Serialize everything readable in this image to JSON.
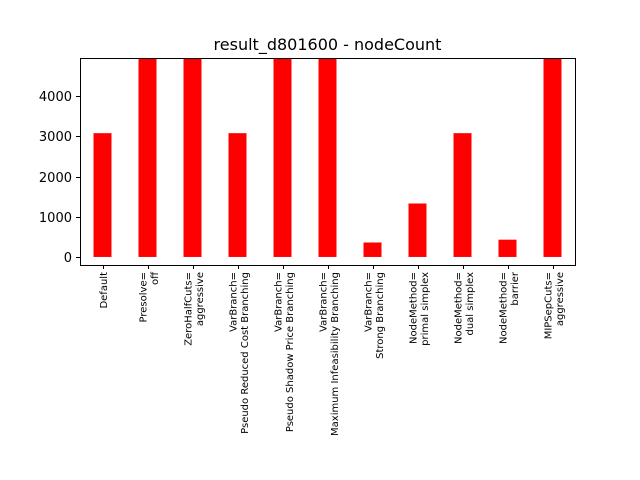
{
  "chart_data": {
    "type": "bar",
    "title": "result_d801600 - nodeCount",
    "xlabel": "",
    "ylabel": "",
    "categories": [
      [
        "Default"
      ],
      [
        "Presolve=",
        "off"
      ],
      [
        "ZeroHalfCuts=",
        "aggressive"
      ],
      [
        "VarBranch=",
        "Pseudo Reduced Cost Branching"
      ],
      [
        "VarBranch=",
        "Pseudo Shadow Price Branching"
      ],
      [
        "VarBranch=",
        "Maximum Infeasibility Branching"
      ],
      [
        "VarBranch=",
        "Strong Branching"
      ],
      [
        "NodeMethod=",
        "primal simplex"
      ],
      [
        "NodeMethod=",
        "dual simplex"
      ],
      [
        "NodeMethod=",
        "barrier"
      ],
      [
        "MIPSepCuts=",
        "aggressive"
      ]
    ],
    "values": [
      3080,
      5000,
      5000,
      3080,
      5000,
      5000,
      360,
      1330,
      3080,
      430,
      5000
    ],
    "ylim": [
      -200,
      4950
    ],
    "yticks": [
      0,
      1000,
      2000,
      3000,
      4000
    ],
    "bar_color": "#ff0000",
    "grid": false,
    "legend": "none"
  }
}
